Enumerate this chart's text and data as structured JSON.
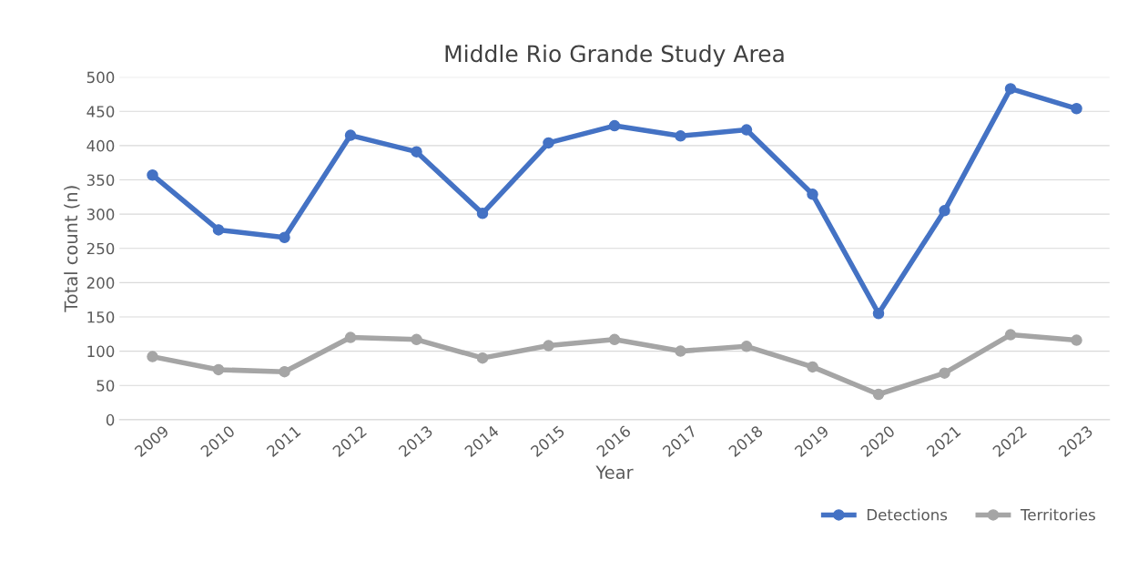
{
  "chart_data": {
    "type": "line",
    "title": "Middle Rio Grande Study Area",
    "xlabel": "Year",
    "ylabel": "Total count (n)",
    "categories": [
      "2009",
      "2010",
      "2011",
      "2012",
      "2013",
      "2014",
      "2015",
      "2016",
      "2017",
      "2018",
      "2019",
      "2020",
      "2021",
      "2022",
      "2023"
    ],
    "series": [
      {
        "name": "Detections",
        "color": "#4472c4",
        "values": [
          357,
          277,
          266,
          415,
          391,
          301,
          404,
          429,
          414,
          423,
          329,
          155,
          305,
          483,
          454
        ]
      },
      {
        "name": "Territories",
        "color": "#a5a5a5",
        "values": [
          92,
          73,
          70,
          120,
          117,
          90,
          108,
          117,
          100,
          107,
          77,
          37,
          68,
          124,
          116
        ]
      }
    ],
    "ylim": [
      0,
      500
    ],
    "yticks": [
      0,
      50,
      100,
      150,
      200,
      250,
      300,
      350,
      400,
      450,
      500
    ],
    "grid": "y",
    "legend": "bottom right",
    "marker": "circle",
    "line_style": "solid"
  }
}
